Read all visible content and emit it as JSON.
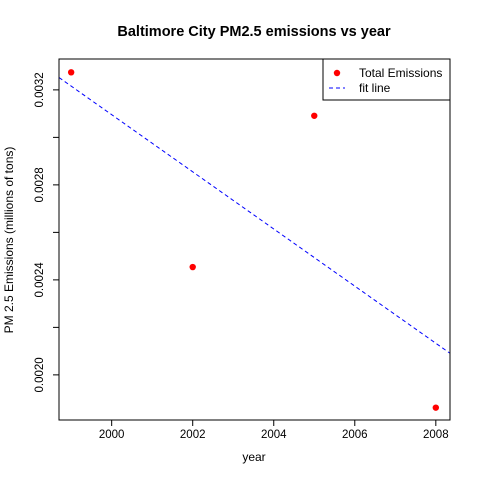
{
  "chart_data": {
    "type": "scatter",
    "title": "Baltimore City PM2.5 emissions vs year",
    "xlabel": "year",
    "ylabel": "PM 2.5 Emissions (millions of tons)",
    "xlim": [
      1998.7,
      2008.35
    ],
    "ylim": [
      0.00181,
      0.00333
    ],
    "x_ticks": [
      2000,
      2002,
      2004,
      2006,
      2008
    ],
    "x_tick_labels": [
      "2000",
      "2002",
      "2004",
      "2006",
      "2008"
    ],
    "y_ticks": [
      0.002,
      0.0024,
      0.0028,
      0.0032
    ],
    "y_tick_labels": [
      "0.0020",
      "0.0024",
      "0.0028",
      "0.0032"
    ],
    "y_minor_ticks": [
      0.0022,
      0.0026,
      0.003
    ],
    "series": [
      {
        "name": "Total Emissions",
        "kind": "points",
        "color": "#ff0000",
        "x": [
          1999,
          2002,
          2005,
          2008
        ],
        "y": [
          0.003274,
          0.002454,
          0.003091,
          0.001862
        ]
      },
      {
        "name": "fit line",
        "kind": "line",
        "style": "dashed",
        "color": "#0000ff",
        "x": [
          1998.7,
          2008.35
        ],
        "y": [
          0.003252,
          0.002091
        ]
      }
    ],
    "legend_position": "top-right",
    "grid": false
  }
}
